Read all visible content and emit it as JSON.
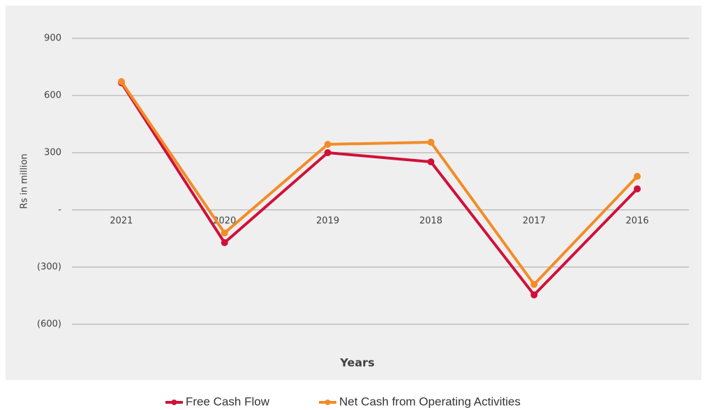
{
  "chart_data": {
    "type": "line",
    "y_label": "Rs in million",
    "x_label": "Years",
    "categories": [
      "2021",
      "2020",
      "2019",
      "2018",
      "2017",
      "2016"
    ],
    "series": [
      {
        "name": "Free Cash Flow",
        "color": "#d0103a",
        "values": [
          667,
          -172,
          300,
          252,
          -446,
          110
        ]
      },
      {
        "name": "Net Cash from Operating Activities",
        "color": "#f28c28",
        "values": [
          673,
          -121,
          344,
          355,
          -391,
          176
        ]
      }
    ],
    "ylim": [
      -600,
      900
    ],
    "yticks": [
      900,
      600,
      300,
      {
        "value": 0,
        "label": "-"
      },
      {
        "value": -300,
        "label": "(300)"
      },
      {
        "value": -600,
        "label": "(600)"
      }
    ],
    "grid": true,
    "legend": "bottom"
  }
}
